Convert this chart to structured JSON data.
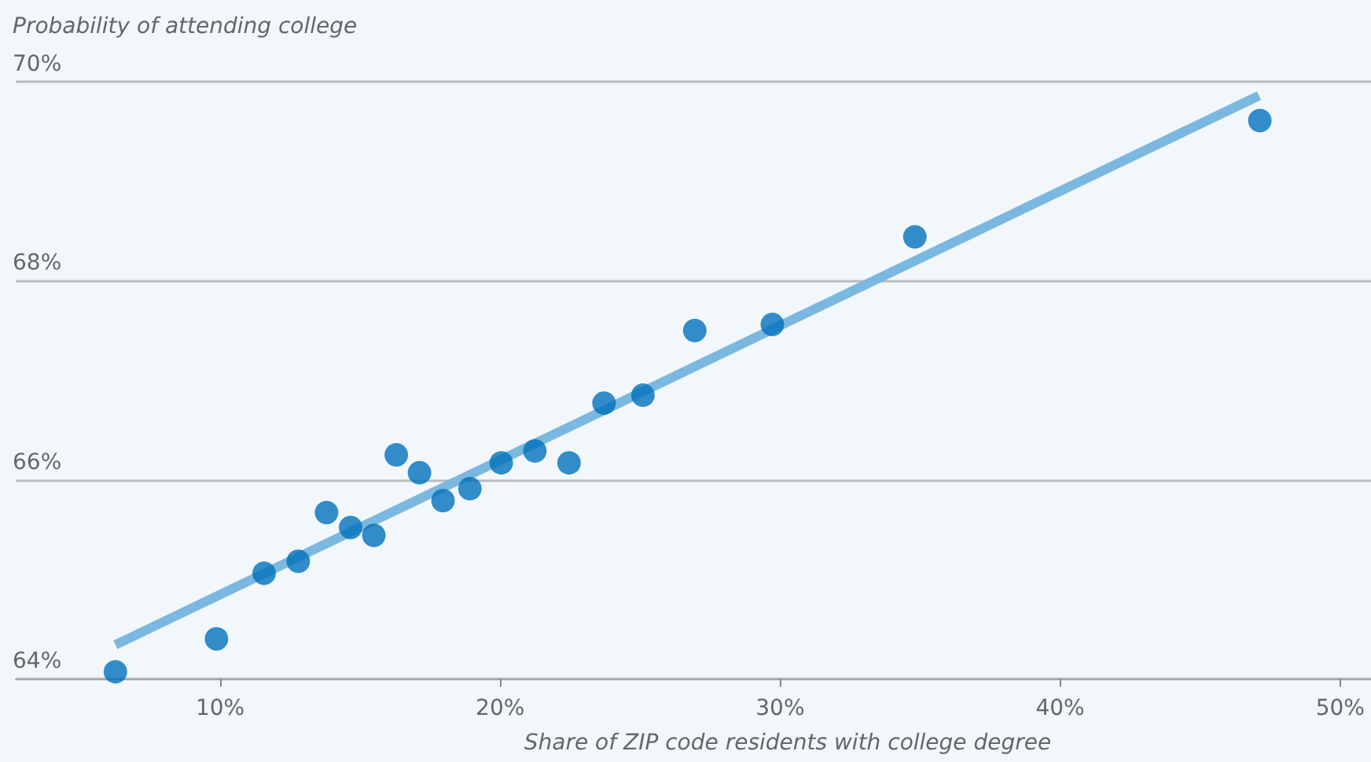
{
  "chart_data": {
    "type": "scatter",
    "xlabel": "Share of ZIP code residents with college degree",
    "ylabel": "Probability of attending college",
    "series": [
      {
        "color": "#0071bc",
        "marker": "circle",
        "x": [
          6.26,
          9.87,
          11.57,
          12.79,
          13.8,
          14.66,
          15.49,
          16.29,
          17.12,
          17.96,
          18.92,
          20.04,
          21.24,
          22.46,
          23.71,
          25.1,
          26.95,
          29.72,
          34.81,
          47.13
        ],
        "values": [
          64.07,
          64.4,
          65.06,
          65.18,
          65.67,
          65.52,
          65.44,
          66.25,
          66.07,
          65.79,
          65.91,
          66.17,
          66.29,
          66.17,
          66.77,
          66.85,
          67.5,
          67.56,
          68.44,
          69.61
        ]
      },
      {
        "type": "line",
        "color": "#7bb8e0",
        "x": [
          6.26,
          47.1
        ],
        "values": [
          64.34,
          69.86
        ]
      }
    ],
    "xlim": [
      2.7,
      51.1
    ],
    "xticks": [
      {
        "value": 10,
        "label": "10%"
      },
      {
        "value": 20,
        "label": "20%"
      },
      {
        "value": 30,
        "label": "30%"
      },
      {
        "value": 40,
        "label": "40%"
      },
      {
        "value": 50,
        "label": "50%"
      }
    ],
    "ylim": [
      64,
      70
    ],
    "yticks": [
      {
        "value": 64,
        "label": "64%"
      },
      {
        "value": 66,
        "label": "66%"
      },
      {
        "value": 68,
        "label": "68%"
      },
      {
        "value": 70,
        "label": "70%"
      }
    ],
    "grid": "y",
    "line_style": "solid"
  }
}
